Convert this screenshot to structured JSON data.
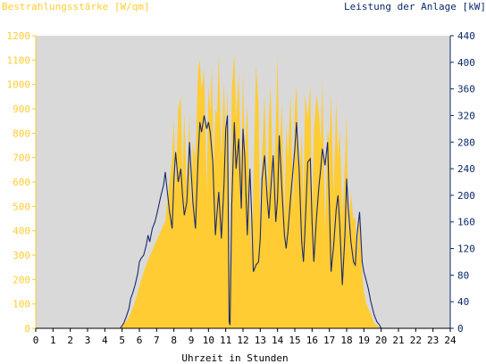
{
  "chart_data": {
    "type": "area",
    "left_axis_title": "Bestrahlungsstärke [W/qm]",
    "right_axis_title": "Leistung der Anlage [kW]",
    "xlabel": "Uhrzeit in Stunden",
    "xlim": [
      0,
      24
    ],
    "ylim_left": [
      0,
      1200
    ],
    "ylim_right": [
      0,
      440
    ],
    "x_ticks": [
      "0",
      "1",
      "2",
      "3",
      "4",
      "5",
      "6",
      "7",
      "8",
      "9",
      "10",
      "11",
      "12",
      "13",
      "14",
      "15",
      "16",
      "17",
      "18",
      "19",
      "20",
      "21",
      "22",
      "23",
      "24"
    ],
    "y_left_ticks": [
      "0",
      "100",
      "200",
      "300",
      "400",
      "500",
      "600",
      "700",
      "800",
      "900",
      "1000",
      "1100",
      "1200"
    ],
    "y_right_ticks": [
      "0",
      "40",
      "80",
      "120",
      "160",
      "200",
      "240",
      "280",
      "320",
      "360",
      "400",
      "440"
    ],
    "colors": {
      "irradiance": "#ffcc33",
      "power": "#1a2a6e",
      "background": "#d9d9d9",
      "right_axis": "#0a2a6a"
    },
    "series": [
      {
        "name": "Bestrahlungsstärke",
        "axis": "left",
        "style": "area",
        "x": [
          0,
          4.8,
          5.0,
          5.25,
          5.5,
          5.75,
          6.0,
          6.25,
          6.5,
          6.75,
          7.0,
          7.25,
          7.5,
          7.75,
          7.9,
          8.0,
          8.1,
          8.25,
          8.4,
          8.5,
          8.6,
          8.75,
          8.9,
          9.0,
          9.1,
          9.25,
          9.4,
          9.5,
          9.6,
          9.75,
          9.9,
          10.0,
          10.1,
          10.2,
          10.3,
          10.4,
          10.5,
          10.6,
          10.75,
          10.9,
          11.0,
          11.1,
          11.2,
          11.25,
          11.35,
          11.5,
          11.6,
          11.75,
          11.9,
          12.0,
          12.1,
          12.25,
          12.4,
          12.5,
          12.6,
          12.75,
          12.9,
          13.0,
          13.1,
          13.25,
          13.4,
          13.5,
          13.6,
          13.75,
          13.9,
          14.0,
          14.1,
          14.25,
          14.4,
          14.5,
          14.6,
          14.75,
          14.9,
          15.0,
          15.1,
          15.25,
          15.4,
          15.5,
          15.6,
          15.75,
          15.9,
          16.0,
          16.1,
          16.25,
          16.4,
          16.5,
          16.6,
          16.75,
          16.9,
          17.0,
          17.1,
          17.25,
          17.4,
          17.5,
          17.6,
          17.75,
          17.9,
          18.0,
          18.1,
          18.25,
          18.4,
          18.5,
          18.6,
          18.75,
          18.9,
          19.0,
          19.1,
          19.25,
          19.4,
          19.5,
          19.6,
          19.75,
          19.9,
          20.0,
          20.2,
          24
        ],
        "values": [
          0,
          0,
          10,
          30,
          60,
          110,
          170,
          230,
          280,
          320,
          360,
          400,
          440,
          600,
          700,
          860,
          560,
          900,
          950,
          620,
          880,
          560,
          880,
          460,
          760,
          700,
          1060,
          1100,
          980,
          1060,
          560,
          1000,
          880,
          1080,
          640,
          900,
          880,
          1120,
          700,
          1020,
          760,
          980,
          540,
          100,
          980,
          1130,
          860,
          1040,
          620,
          1060,
          700,
          920,
          480,
          300,
          560,
          1080,
          920,
          380,
          700,
          960,
          480,
          860,
          1000,
          540,
          820,
          1120,
          700,
          920,
          440,
          840,
          700,
          960,
          480,
          900,
          1000,
          600,
          800,
          500,
          960,
          860,
          1000,
          440,
          800,
          960,
          880,
          760,
          1020,
          400,
          820,
          760,
          960,
          540,
          940,
          700,
          820,
          460,
          680,
          880,
          380,
          560,
          440,
          460,
          300,
          460,
          220,
          150,
          110,
          80,
          60,
          40,
          20,
          10,
          5,
          0,
          0,
          0
        ]
      },
      {
        "name": "Leistung der Anlage",
        "axis": "right",
        "style": "line",
        "x": [
          0,
          4.9,
          5.1,
          5.25,
          5.4,
          5.5,
          5.6,
          5.75,
          5.9,
          6.0,
          6.1,
          6.25,
          6.4,
          6.5,
          6.6,
          6.75,
          6.9,
          7.0,
          7.1,
          7.25,
          7.4,
          7.5,
          7.6,
          7.75,
          7.9,
          8.0,
          8.1,
          8.25,
          8.4,
          8.5,
          8.6,
          8.75,
          8.9,
          9.0,
          9.1,
          9.25,
          9.4,
          9.5,
          9.6,
          9.75,
          9.9,
          10.0,
          10.1,
          10.25,
          10.4,
          10.5,
          10.6,
          10.75,
          10.9,
          11.0,
          11.1,
          11.15,
          11.2,
          11.25,
          11.35,
          11.5,
          11.6,
          11.75,
          11.9,
          12.0,
          12.1,
          12.25,
          12.4,
          12.5,
          12.6,
          12.75,
          12.9,
          13.0,
          13.1,
          13.25,
          13.4,
          13.5,
          13.6,
          13.75,
          13.9,
          14.0,
          14.1,
          14.25,
          14.4,
          14.5,
          14.6,
          14.75,
          14.9,
          15.0,
          15.1,
          15.25,
          15.4,
          15.5,
          15.6,
          15.75,
          15.9,
          16.0,
          16.1,
          16.25,
          16.4,
          16.5,
          16.6,
          16.75,
          16.9,
          17.0,
          17.1,
          17.25,
          17.4,
          17.5,
          17.6,
          17.75,
          17.9,
          18.0,
          18.1,
          18.25,
          18.4,
          18.5,
          18.6,
          18.75,
          18.9,
          19.0,
          19.1,
          19.25,
          19.4,
          19.5,
          19.6,
          19.75,
          19.9,
          20.0,
          24
        ],
        "values": [
          0,
          0,
          8,
          18,
          30,
          45,
          52,
          65,
          82,
          100,
          105,
          110,
          125,
          140,
          130,
          150,
          160,
          170,
          182,
          200,
          215,
          235,
          210,
          175,
          150,
          225,
          265,
          220,
          240,
          200,
          170,
          190,
          280,
          235,
          190,
          150,
          255,
          310,
          295,
          320,
          300,
          310,
          295,
          250,
          140,
          175,
          205,
          135,
          215,
          300,
          320,
          160,
          10,
          5,
          185,
          310,
          240,
          285,
          180,
          300,
          260,
          140,
          240,
          170,
          85,
          95,
          100,
          135,
          225,
          260,
          195,
          165,
          205,
          260,
          160,
          195,
          290,
          210,
          140,
          120,
          145,
          195,
          240,
          270,
          310,
          240,
          130,
          100,
          155,
          250,
          255,
          160,
          100,
          165,
          215,
          240,
          270,
          245,
          280,
          185,
          85,
          125,
          180,
          200,
          155,
          65,
          140,
          225,
          180,
          130,
          100,
          95,
          140,
          175,
          100,
          85,
          75,
          60,
          40,
          30,
          20,
          10,
          5,
          0,
          0
        ]
      }
    ]
  }
}
